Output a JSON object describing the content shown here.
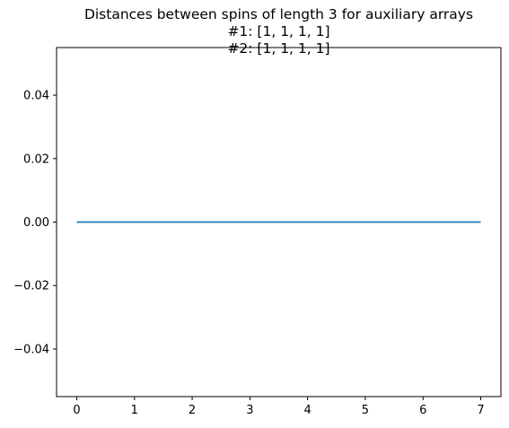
{
  "chart_data": {
    "type": "line",
    "title": [
      "Distances between spins of length 3 for auxiliary arrays",
      "#1:  [1, 1, 1, 1]",
      "#2: [1, 1, 1, 1]"
    ],
    "xlabel": "",
    "ylabel": "",
    "xlim": [
      -0.35,
      7.35
    ],
    "ylim": [
      -0.055,
      0.055
    ],
    "x_ticks": [
      "0",
      "1",
      "2",
      "3",
      "4",
      "5",
      "6",
      "7"
    ],
    "y_ticks": [
      "−0.04",
      "−0.02",
      "0.00",
      "0.02",
      "0.04"
    ],
    "series": [
      {
        "color": "#1f77b4",
        "x": [
          0,
          1,
          2,
          3,
          4,
          5,
          6,
          7
        ],
        "y": [
          0,
          0,
          0,
          0,
          0,
          0,
          0,
          0
        ]
      }
    ],
    "grid": false,
    "legend": "none"
  }
}
